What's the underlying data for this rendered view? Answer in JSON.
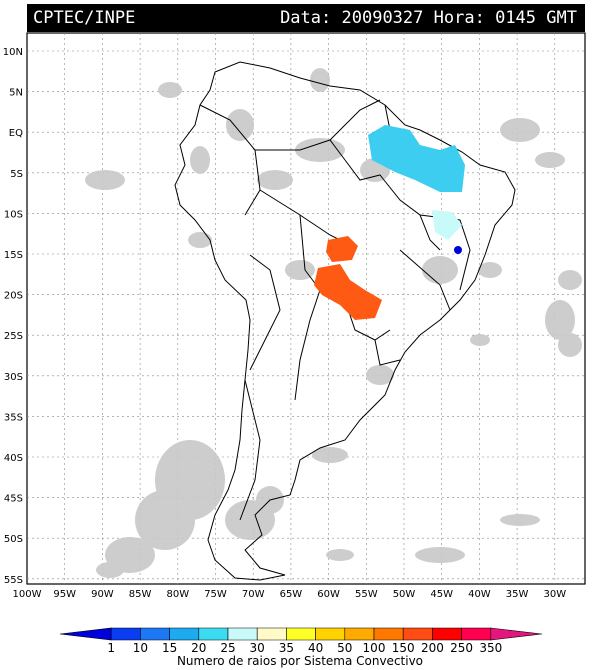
{
  "header": {
    "source": "CPTEC/INPE",
    "data_label": "Data:",
    "date": "20090327",
    "hora_label": "Hora:",
    "time": "0145",
    "tz": "GMT"
  },
  "axes": {
    "lat_labels": [
      "10N",
      "5N",
      "EQ",
      "5S",
      "10S",
      "15S",
      "20S",
      "25S",
      "30S",
      "35S",
      "40S",
      "45S",
      "50S",
      "55S"
    ],
    "lon_labels": [
      "100W",
      "95W",
      "90W",
      "85W",
      "80W",
      "75W",
      "70W",
      "65W",
      "60W",
      "55W",
      "50W",
      "45W",
      "40W",
      "35W",
      "30W"
    ]
  },
  "legend": {
    "title": "Numero de raios por Sistema Convectivo",
    "values": [
      "1",
      "10",
      "15",
      "20",
      "25",
      "30",
      "35",
      "40",
      "50",
      "100",
      "150",
      "200",
      "250",
      "350"
    ],
    "colors": [
      "#0000dd",
      "#0a3cf0",
      "#1e78f5",
      "#1eaaf0",
      "#3cdcf0",
      "#c8fafa",
      "#fffac8",
      "#ffff28",
      "#ffd200",
      "#ffaa00",
      "#ff7800",
      "#ff4b14",
      "#ff0000",
      "#ff0050",
      "#e6147d"
    ]
  }
}
